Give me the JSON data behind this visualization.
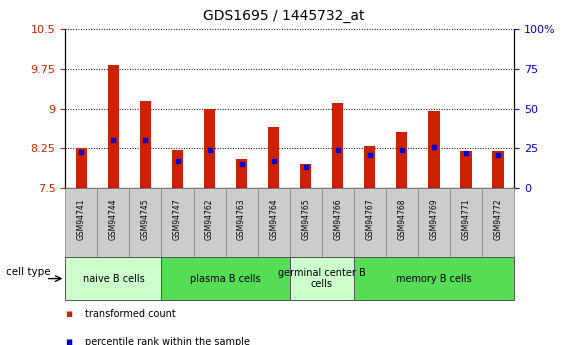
{
  "title": "GDS1695 / 1445732_at",
  "samples": [
    "GSM94741",
    "GSM94744",
    "GSM94745",
    "GSM94747",
    "GSM94762",
    "GSM94763",
    "GSM94764",
    "GSM94765",
    "GSM94766",
    "GSM94767",
    "GSM94768",
    "GSM94769",
    "GSM94771",
    "GSM94772"
  ],
  "transformed_count": [
    8.25,
    9.82,
    9.15,
    8.22,
    9.0,
    8.05,
    8.65,
    7.95,
    9.1,
    8.3,
    8.55,
    8.95,
    8.2,
    8.2
  ],
  "percentile_rank": [
    23,
    30,
    30,
    17,
    24,
    15,
    17,
    13,
    24,
    21,
    24,
    26,
    22,
    21
  ],
  "ymin": 7.5,
  "ymax": 10.5,
  "yticks": [
    7.5,
    8.25,
    9.0,
    9.75,
    10.5
  ],
  "ytick_labels": [
    "7.5",
    "8.25",
    "9",
    "9.75",
    "10.5"
  ],
  "right_yticks": [
    0,
    25,
    50,
    75,
    100
  ],
  "right_ytick_labels": [
    "0",
    "25",
    "50",
    "75",
    "100%"
  ],
  "bar_color": "#cc2200",
  "marker_color": "#0000cc",
  "cell_types": [
    {
      "label": "naive B cells",
      "start": 0,
      "end": 3,
      "color": "#ccffcc"
    },
    {
      "label": "plasma B cells",
      "start": 3,
      "end": 7,
      "color": "#55dd55"
    },
    {
      "label": "germinal center B\ncells",
      "start": 7,
      "end": 9,
      "color": "#ccffcc"
    },
    {
      "label": "memory B cells",
      "start": 9,
      "end": 14,
      "color": "#55dd55"
    }
  ],
  "cell_type_label": "cell type",
  "legend_items": [
    {
      "label": "transformed count",
      "color": "#cc2200"
    },
    {
      "label": "percentile rank within the sample",
      "color": "#0000cc"
    }
  ],
  "bar_width": 0.35,
  "tick_bg": "#cccccc"
}
